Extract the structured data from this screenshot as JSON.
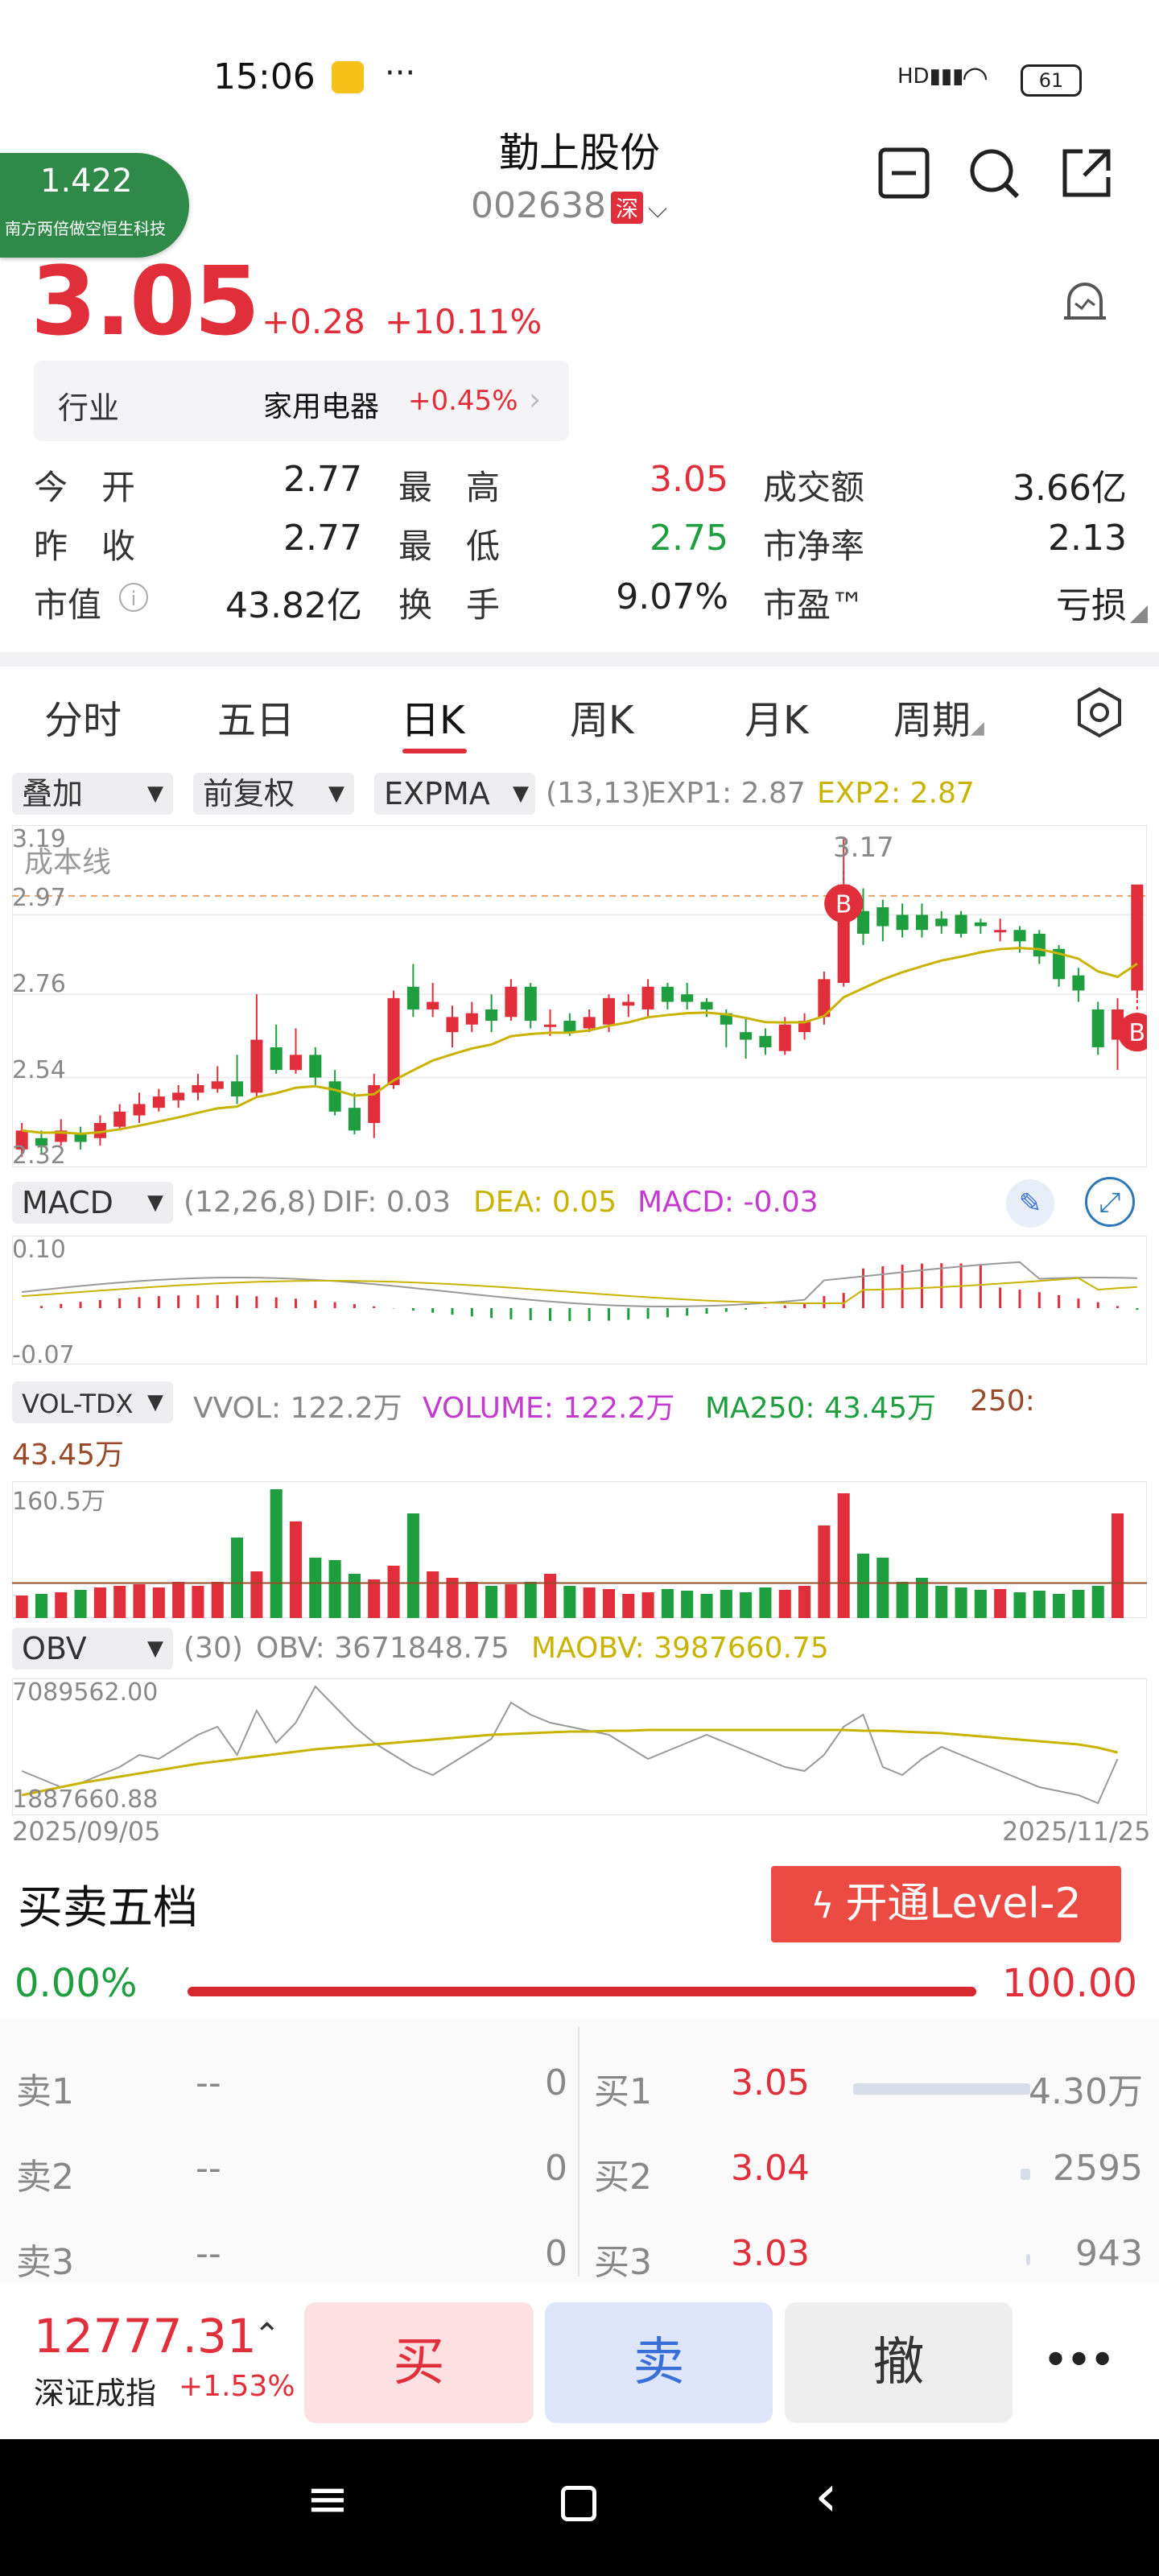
{
  "status": {
    "time": "15:06",
    "battery": "61"
  },
  "header": {
    "title": "勤上股份",
    "code": "002638",
    "market_tag": "深"
  },
  "floater": {
    "value": "1.422",
    "name": "南方两倍做空恒生科技"
  },
  "quote": {
    "price": "3.05",
    "change": "+0.28",
    "change_pct": "+10.11%",
    "industry_label": "行业",
    "industry": "家用电器",
    "industry_pct": "+0.45%",
    "rows": [
      {
        "l1": "今　开",
        "v1": "2.77",
        "l2": "最　高",
        "v2": "3.05",
        "l3": "成交额",
        "v3": "3.66亿"
      },
      {
        "l1": "昨　收",
        "v1": "2.77",
        "l2": "最　低",
        "v2": "2.75",
        "l3": "市净率",
        "v3": "2.13"
      },
      {
        "l1": "市值",
        "v1": "43.82亿",
        "l2": "换　手",
        "v2": "9.07%",
        "l3": "市盈™",
        "v3": "亏损"
      }
    ]
  },
  "tabs": [
    "分时",
    "五日",
    "日K",
    "周K",
    "月K",
    "周期"
  ],
  "kline": {
    "chips": [
      "叠加",
      "前复权",
      "EXPMA"
    ],
    "params": "(13,13)",
    "exp1": "EXP1: 2.87",
    "exp2": "EXP2: 2.87",
    "cost_line": "成本线",
    "high_label": "3.17",
    "y_ticks": [
      "3.19",
      "2.97",
      "2.76",
      "2.54",
      "2.32"
    ]
  },
  "macd": {
    "name": "MACD",
    "params": "(12,26,8)",
    "dif": "DIF: 0.03",
    "dea": "DEA: 0.05",
    "macd": "MACD: -0.03",
    "top": "0.10",
    "bottom": "-0.07"
  },
  "vol": {
    "name": "VOL-TDX",
    "vvol": "VVOL: 122.2万",
    "volume": "VOLUME: 122.2万",
    "ma250": "MA250: 43.45万",
    "ma250b": "250:",
    "ma250c": "43.45万",
    "top": "160.5万"
  },
  "obv": {
    "name": "OBV",
    "params": "(30)",
    "obv": "OBV: 3671848.75",
    "maobv": "MAOBV: 3987660.75",
    "top": "7089562.00",
    "bottom": "1887660.88",
    "date_start": "2025/09/05",
    "date_end": "2025/11/25"
  },
  "orderbook": {
    "title": "买卖五档",
    "l2_button": "开通Level-2",
    "ratio_left": "0.00%",
    "ratio_right": "100.00",
    "sell": [
      {
        "label": "卖1",
        "price": "--",
        "vol": "0"
      },
      {
        "label": "卖2",
        "price": "--",
        "vol": "0"
      },
      {
        "label": "卖3",
        "price": "--",
        "vol": "0"
      }
    ],
    "buy": [
      {
        "label": "买1",
        "price": "3.05",
        "vol": "4.30万",
        "bar": 0.9
      },
      {
        "label": "买2",
        "price": "3.04",
        "vol": "2595",
        "bar": 0.05
      },
      {
        "label": "买3",
        "price": "3.03",
        "vol": "943",
        "bar": 0.02
      }
    ]
  },
  "footer": {
    "index_value": "12777.31",
    "index_name": "深证成指",
    "index_pct": "+1.53%",
    "buy": "买",
    "sell": "卖",
    "cancel": "撤",
    "more": "•••"
  },
  "colors": {
    "up": "#e02e3a",
    "down": "#1e9e3e",
    "exp2": "#c8b400",
    "macd": "#c43bd0"
  }
}
